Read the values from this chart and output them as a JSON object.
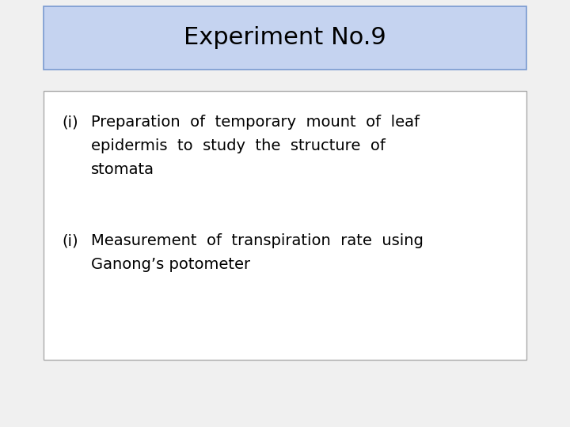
{
  "title": "Experiment No.9",
  "title_bg_color": "#c5d3f0",
  "title_fontsize": 22,
  "title_font_color": "#000000",
  "bg_color": "#f0f0f0",
  "item1_label": "(i)",
  "item1_text_line1": "Preparation  of  temporary  mount  of  leaf",
  "item1_text_line2": "epidermis  to  study  the  structure  of",
  "item1_text_line3": "stomata",
  "item2_label": "(i)",
  "item2_text_line1": "Measurement  of  transpiration  rate  using",
  "item2_text_line2": "Ganong’s potometer",
  "content_fontsize": 14,
  "content_font_color": "#000000",
  "content_box_edge_color": "#aaaaaa",
  "content_box_bg": "#ffffff",
  "fig_bg": "#f0f0f0"
}
